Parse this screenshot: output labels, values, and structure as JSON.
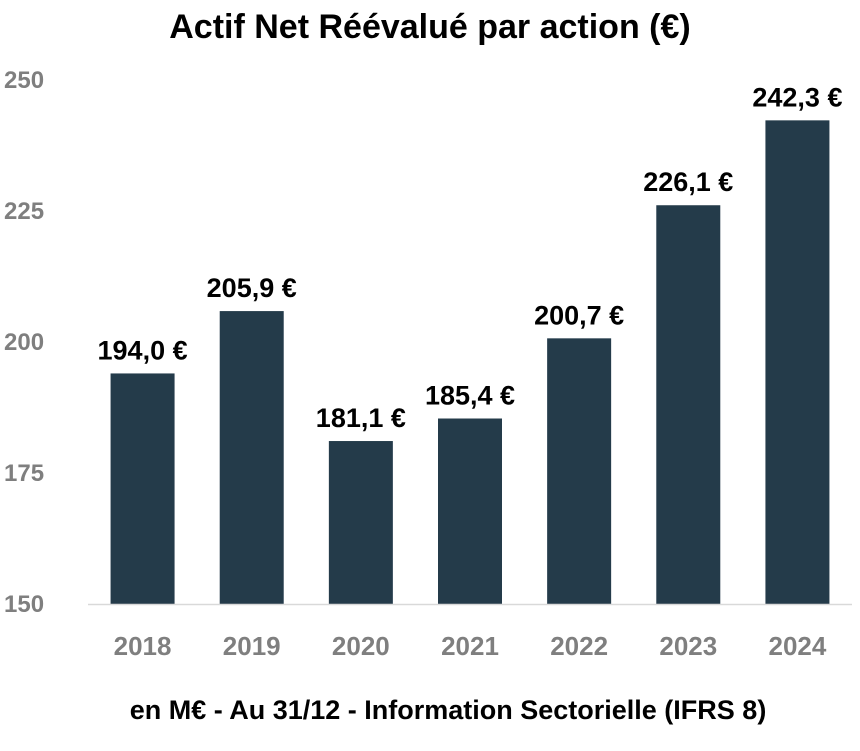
{
  "chart_data": {
    "type": "bar",
    "title": "Actif Net Réévalué par action (€)",
    "footnote": "en M€ - Au 31/12 - Information Sectorielle (IFRS 8)",
    "categories": [
      "2018",
      "2019",
      "2020",
      "2021",
      "2022",
      "2023",
      "2024"
    ],
    "values": [
      194.0,
      205.9,
      181.1,
      185.4,
      200.7,
      226.1,
      242.3
    ],
    "data_labels": [
      "194,0 €",
      "205,9 €",
      "181,1 €",
      "185,4 €",
      "200,7 €",
      "226,1 €",
      "242,3 €"
    ],
    "ylim": [
      150,
      250
    ],
    "yticks": [
      150,
      175,
      200,
      225,
      250
    ],
    "xlabel": "",
    "ylabel": "",
    "grid": false,
    "legend": "none",
    "bar_color": "#243b4a",
    "tick_color": "#7f7f7f",
    "axis_color": "#d9d9d9"
  }
}
